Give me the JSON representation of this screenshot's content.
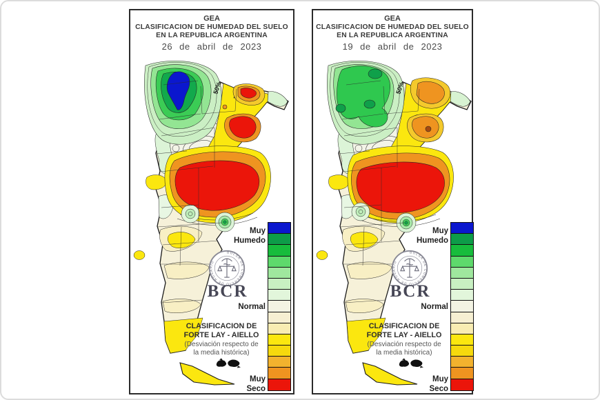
{
  "shared": {
    "org": "GEA",
    "title1": "CLASIFICACION DE HUMEDAD DEL SUELO",
    "title2": "EN LA REPUBLICA ARGENTINA",
    "legend_top1": "Muy",
    "legend_top2": "Humedo",
    "legend_mid": "Normal",
    "legend_bot1": "Muy",
    "legend_bot2": "Seco",
    "logo": "BCR",
    "logo_ring": "BOLSA DE COMERCIO DE ROSARIO",
    "class1": "CLASIFICACION DE",
    "class2": "FORTE LAY - AIELLO",
    "note1": "(Desviación respecto de",
    "note2": "la media histórica)",
    "contour_label": "50%"
  },
  "panels": [
    {
      "id": "left",
      "date": "26 de abril de 2023"
    },
    {
      "id": "right",
      "date": "19 de abril de 2023"
    }
  ],
  "legend_colors": [
    "#0B17CE",
    "#0D9C48",
    "#17BC3C",
    "#5ED96C",
    "#9FE79E",
    "#C8F0C2",
    "#E2F6DB",
    "#F3F3E3",
    "#F6EFD2",
    "#F8ECB2",
    "#FBE70F",
    "#F6D90D",
    "#F2B22E",
    "#EF9420",
    "#EB150A"
  ],
  "colors": {
    "muy_humedo_blue": "#0B17CE",
    "muy_seco_red": "#EB150A",
    "normal_cream": "#F6EFD2",
    "panel_border": "#2a2a2a",
    "frame": "#dcdcdc"
  }
}
